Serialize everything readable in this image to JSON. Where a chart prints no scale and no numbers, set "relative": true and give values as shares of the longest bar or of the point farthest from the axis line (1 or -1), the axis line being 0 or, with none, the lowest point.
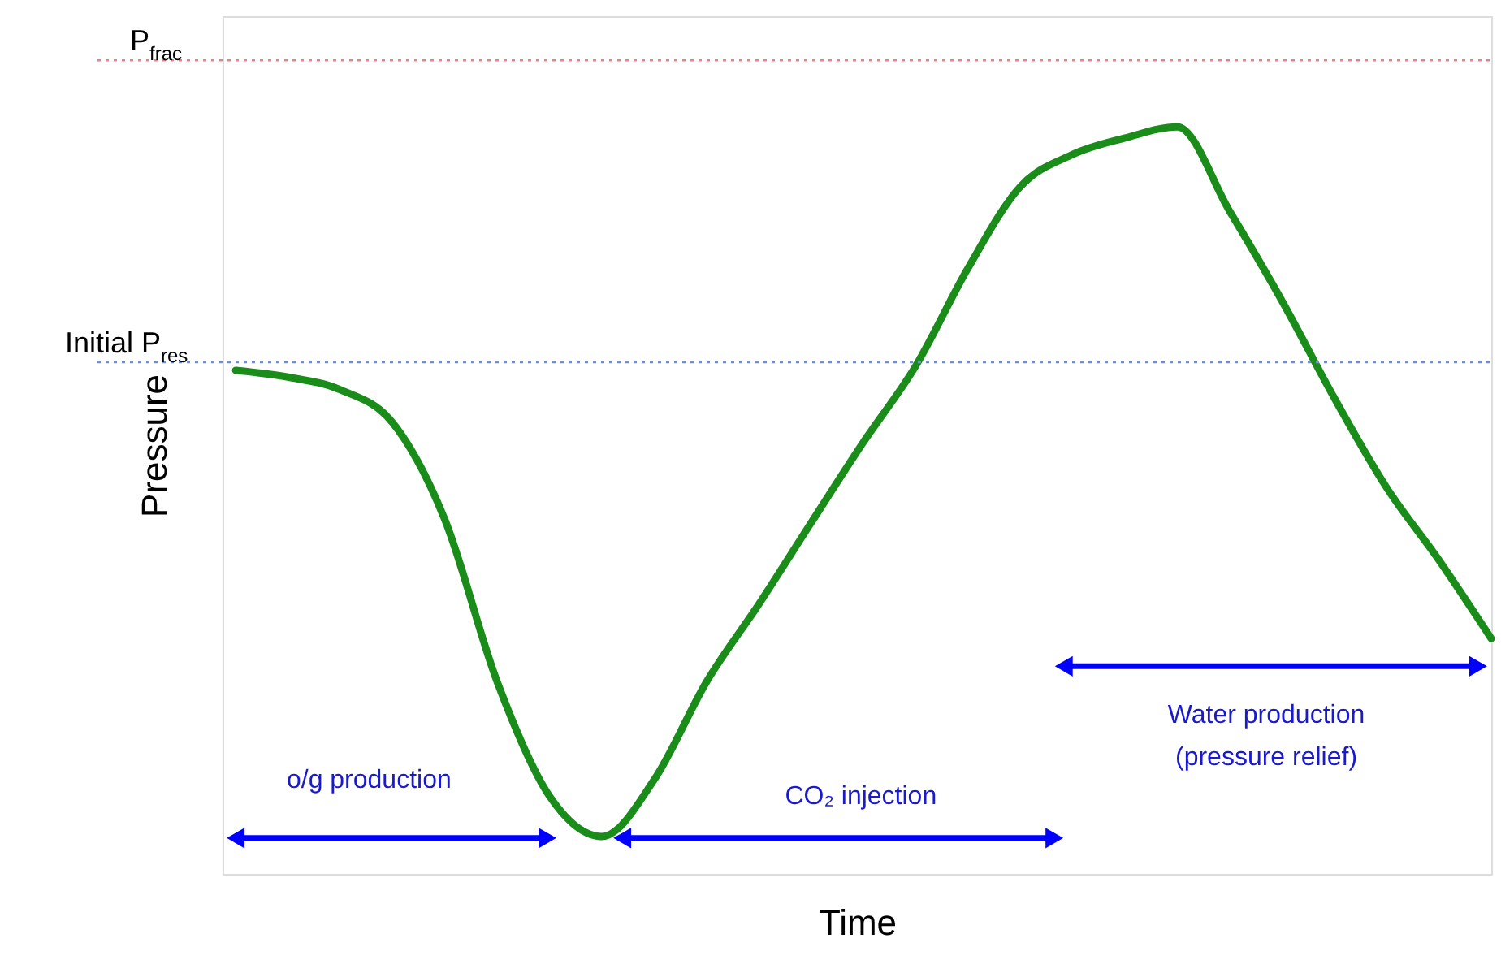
{
  "chart_data": {
    "type": "line",
    "relative": true,
    "xlabel": "Time",
    "ylabel": "Pressure",
    "categories": [
      null,
      null,
      null,
      null,
      null,
      null,
      null,
      null,
      null,
      null,
      null,
      null,
      null,
      null,
      null,
      null,
      null,
      null,
      null,
      null,
      null,
      null,
      null,
      null,
      null
    ],
    "series": [
      {
        "color": "#1a8c1a",
        "values": [
          0.674,
          0.665,
          0.648,
          0.604,
          0.474,
          0.257,
          0.104,
          0.05,
          0.126,
          0.257,
          0.361,
          0.47,
          0.578,
          0.68,
          0.811,
          0.92,
          0.963,
          0.985,
          1,
          0.887,
          0.767,
          0.637,
          0.517,
          0.42,
          0.315
        ]
      }
    ],
    "ref_lines": [
      {
        "axis": "y",
        "value": 1.089,
        "label": "P$_{frac}$",
        "color": "#f08080",
        "line_style": "dotted"
      },
      {
        "axis": "y",
        "value": 0.685,
        "label": "Initial P$_{res}$",
        "color": "#6f8fd0",
        "line_style": "dotted"
      }
    ],
    "annotations": [
      "o/g production",
      "CO₂ injection",
      "Water production\n(pressure relief)"
    ]
  }
}
